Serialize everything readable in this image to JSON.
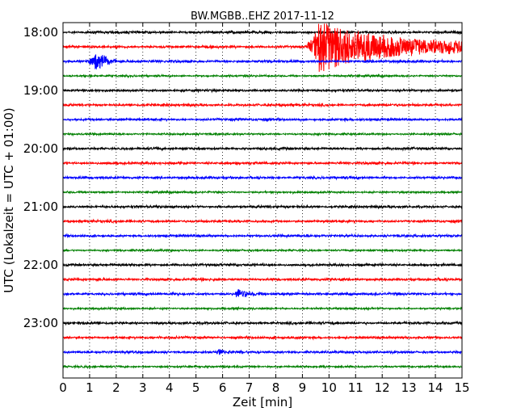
{
  "chart_data": {
    "type": "line",
    "title": "BW.MGBB..EHZ 2017-11-12",
    "xlabel": "Zeit  [min]",
    "ylabel": "UTC (Lokalzeit = UTC + 01:00)",
    "xlim": [
      0,
      15
    ],
    "x_ticks": [
      "0",
      "1",
      "2",
      "3",
      "4",
      "5",
      "6",
      "7",
      "8",
      "9",
      "10",
      "11",
      "12",
      "13",
      "14",
      "15"
    ],
    "y_ticks": [
      "18:00",
      "19:00",
      "20:00",
      "21:00",
      "22:00",
      "23:00"
    ],
    "grid": true,
    "trace_interval_min": 15,
    "trace_colors": [
      "#000000",
      "#ff0000",
      "#0000ff",
      "#008000"
    ],
    "trace_count": 24,
    "events": [
      {
        "trace": 2,
        "start_min": 0.9,
        "peak_min": 1.3,
        "end_min": 2.0,
        "amplitude": 0.9
      },
      {
        "trace": 1,
        "start_min": 9.2,
        "peak_min": 9.6,
        "end_min": 15.0,
        "amplitude": 2.3
      },
      {
        "trace": 18,
        "start_min": 6.4,
        "peak_min": 6.6,
        "end_min": 7.3,
        "amplitude": 0.45
      },
      {
        "trace": 22,
        "start_min": 5.7,
        "peak_min": 5.9,
        "end_min": 6.3,
        "amplitude": 0.25
      }
    ]
  }
}
